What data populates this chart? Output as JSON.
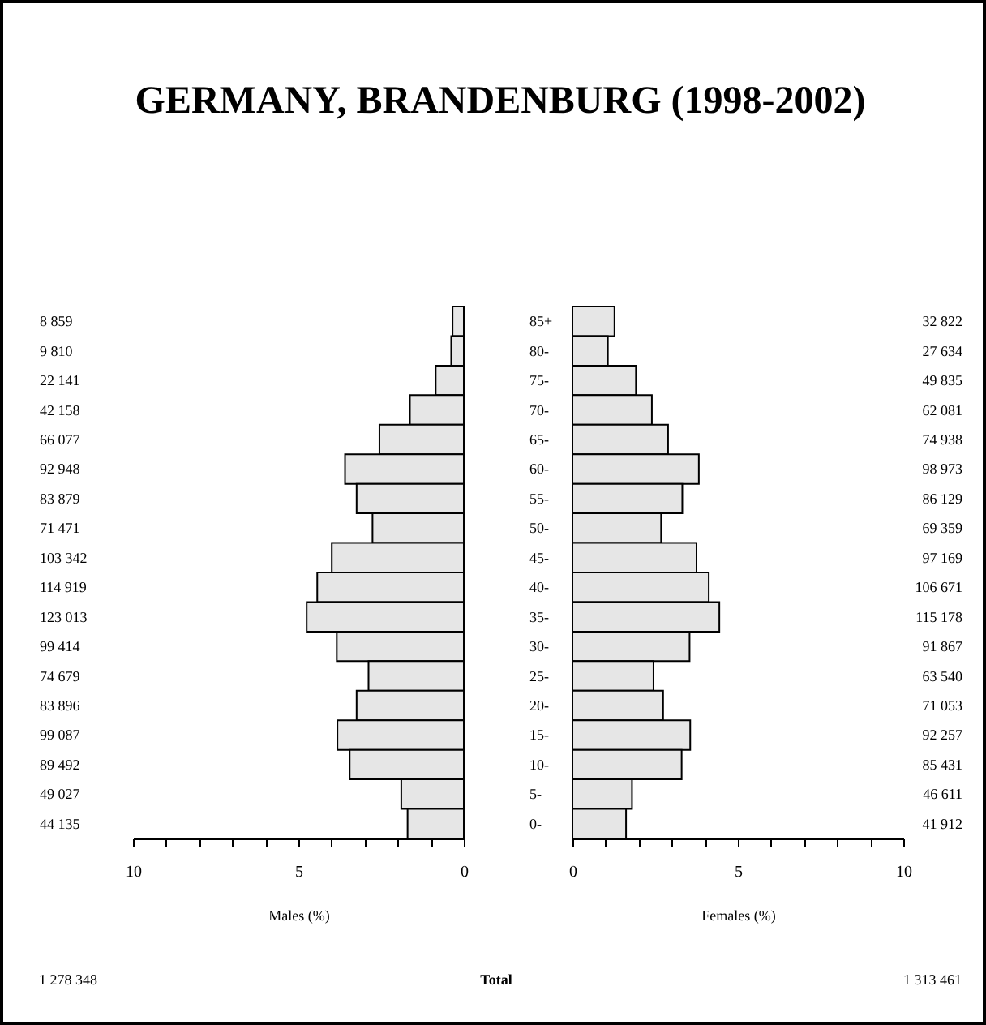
{
  "chart_data": [
    {
      "type": "bar",
      "orientation": "horizontal",
      "title": "GERMANY, BRANDENBURG (1998-2002)",
      "xlabel": "Males (%)",
      "categories": [
        "8 859",
        "9 810",
        "22 141",
        "42 158",
        "66 077",
        "92 948",
        "83 879",
        "71 471",
        "103 342",
        "114 919",
        "123 013",
        "99 414",
        "74 679",
        "83 896",
        "99 087",
        "89 492",
        "49 027",
        "44 135"
      ],
      "values": [
        0.34,
        0.38,
        0.85,
        1.63,
        2.55,
        3.59,
        3.24,
        2.76,
        3.99,
        4.43,
        4.75,
        3.84,
        2.88,
        3.24,
        3.82,
        3.45,
        1.89,
        1.7
      ],
      "color": "#e6e6e6",
      "xlim": [
        10,
        0
      ],
      "xticks": [
        10,
        {
          "value": 9,
          "label": null
        },
        {
          "value": 8,
          "label": null
        },
        {
          "value": 7,
          "label": null
        },
        {
          "value": 6,
          "label": null
        },
        5,
        {
          "value": 4,
          "label": null
        },
        {
          "value": 3,
          "label": null
        },
        {
          "value": 2,
          "label": null
        },
        {
          "value": 1,
          "label": null
        },
        0
      ],
      "annotations": [
        "1 278 348",
        "Total"
      ]
    },
    {
      "type": "bar",
      "orientation": "horizontal",
      "xlabel": "Females (%)",
      "categories": [
        "85+",
        "80-",
        "75-",
        "70-",
        "65-",
        "60-",
        "55-",
        "50-",
        "45-",
        "40-",
        "35-",
        "30-",
        "25-",
        "20-",
        "15-",
        "10-",
        "5-",
        "0-"
      ],
      "y2_categories": [
        "32 822",
        "27 634",
        "49 835",
        "62 081",
        "74 938",
        "98 973",
        "86 129",
        "69 359",
        "97 169",
        "106 671",
        "115 178",
        "91 867",
        "63 540",
        "71 053",
        "92 257",
        "85 431",
        "46 611",
        "41 912"
      ],
      "values": [
        1.27,
        1.07,
        1.92,
        2.4,
        2.89,
        3.82,
        3.32,
        2.68,
        3.75,
        4.12,
        4.44,
        3.54,
        2.45,
        2.74,
        3.56,
        3.3,
        1.8,
        1.62
      ],
      "color": "#e6e6e6",
      "xlim": [
        0,
        10
      ],
      "xticks": [
        0,
        {
          "value": 1,
          "label": null
        },
        {
          "value": 2,
          "label": null
        },
        {
          "value": 3,
          "label": null
        },
        {
          "value": 4,
          "label": null
        },
        5,
        {
          "value": 6,
          "label": null
        },
        {
          "value": 7,
          "label": null
        },
        {
          "value": 8,
          "label": null
        },
        {
          "value": 9,
          "label": null
        },
        10
      ],
      "annotations": [
        "1 313 461"
      ]
    }
  ]
}
